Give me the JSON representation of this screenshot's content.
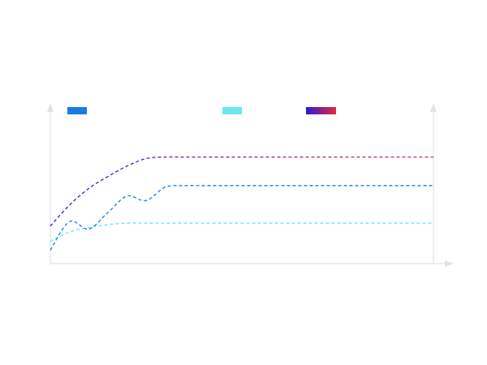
{
  "chart_data": {
    "type": "line",
    "title": "",
    "xlabel": "",
    "ylabel": "",
    "x": [
      0,
      0.05,
      0.1,
      0.15,
      0.2,
      0.25,
      0.3,
      0.35,
      0.4,
      0.45,
      0.5,
      0.55,
      0.6,
      0.65,
      0.7,
      0.75,
      0.8,
      0.85,
      0.9,
      0.95,
      1
    ],
    "xlim": [
      0,
      1
    ],
    "ylim": [
      0,
      1
    ],
    "grid": false,
    "legend_position": "top",
    "series": [
      {
        "name": "",
        "color": "#1a7be0",
        "style": "dashed",
        "values": [
          0.09,
          0.28,
          0.23,
          0.34,
          0.45,
          0.42,
          0.51,
          0.52,
          0.52,
          0.52,
          0.52,
          0.52,
          0.52,
          0.52,
          0.52,
          0.52,
          0.52,
          0.52,
          0.52,
          0.52,
          0.52
        ]
      },
      {
        "name": "",
        "color": "#6de6ee",
        "style": "dashed",
        "values": [
          0.15,
          0.21,
          0.24,
          0.26,
          0.27,
          0.27,
          0.27,
          0.27,
          0.27,
          0.27,
          0.27,
          0.27,
          0.27,
          0.27,
          0.27,
          0.27,
          0.27,
          0.27,
          0.27,
          0.27,
          0.27
        ]
      },
      {
        "name": "",
        "color_start": "#2a1adb",
        "color_end": "#e8283c",
        "style": "dashed",
        "values": [
          0.25,
          0.39,
          0.5,
          0.58,
          0.65,
          0.7,
          0.71,
          0.71,
          0.71,
          0.71,
          0.71,
          0.71,
          0.71,
          0.71,
          0.71,
          0.71,
          0.71,
          0.71,
          0.71,
          0.71,
          0.71
        ]
      }
    ]
  }
}
